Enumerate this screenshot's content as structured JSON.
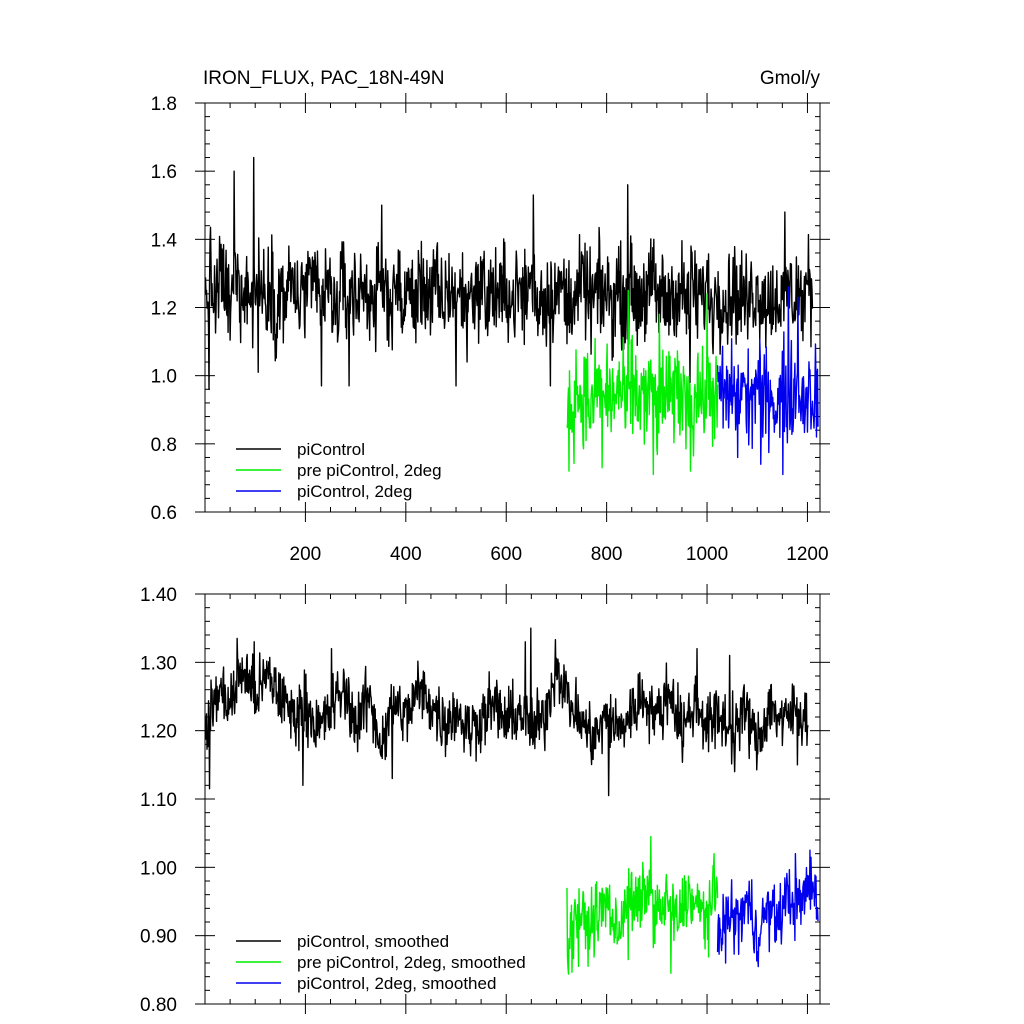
{
  "chart_data": [
    {
      "type": "line",
      "title": "IRON_FLUX, PAC_18N-49N",
      "units": "Gmol/y",
      "xlim": [
        0,
        1225
      ],
      "ylim": [
        0.6,
        1.8
      ],
      "x_ticks": [
        200,
        400,
        600,
        800,
        1000,
        1200
      ],
      "y_ticks": [
        0.6,
        0.8,
        1.0,
        1.2,
        1.4,
        1.6,
        1.8
      ],
      "x_tick_labels": [
        "200",
        "400",
        "600",
        "800",
        "1000",
        "1200"
      ],
      "y_tick_labels": [
        "0.6",
        "0.8",
        "1.0",
        "1.2",
        "1.4",
        "1.6",
        "1.8"
      ],
      "legend_position": "bottom-left",
      "series": [
        {
          "name": "piControl",
          "color": "#000000",
          "x_start": 1,
          "x_end": 1210,
          "x_step": 10,
          "values": [
            1.22,
            1.28,
            1.2,
            1.3,
            1.25,
            1.18,
            1.32,
            1.24,
            1.29,
            1.21,
            1.27,
            1.26,
            1.23,
            1.3,
            1.19,
            1.25,
            1.22,
            1.28,
            1.24,
            1.21,
            1.26,
            1.23,
            1.29,
            1.2,
            1.25,
            1.24,
            1.18,
            1.27,
            1.22,
            1.26,
            1.21,
            1.28,
            1.23,
            1.25,
            1.2,
            1.27,
            1.24,
            1.22,
            1.29,
            1.18,
            1.26,
            1.23,
            1.21,
            1.28,
            1.25,
            1.22,
            1.27,
            1.2,
            1.24,
            1.26,
            1.22,
            1.25,
            1.19,
            1.27,
            1.23,
            1.28,
            1.21,
            1.25,
            1.24,
            1.22,
            1.27,
            1.2,
            1.26,
            1.23,
            1.25,
            1.29,
            1.21,
            1.24,
            1.22,
            1.26,
            1.23,
            1.27,
            1.2,
            1.25,
            1.22,
            1.28,
            1.24,
            1.21,
            1.26,
            1.23,
            1.25,
            1.2,
            1.27,
            1.22,
            1.24,
            1.26,
            1.21,
            1.25,
            1.23,
            1.28,
            1.22,
            1.24,
            1.2,
            1.26,
            1.23,
            1.25,
            1.21,
            1.27,
            1.22,
            1.24,
            1.26,
            1.2,
            1.25,
            1.23,
            1.21,
            1.27,
            1.22,
            1.24,
            1.2,
            1.26,
            1.23,
            1.25,
            1.21,
            1.22,
            1.24,
            1.2,
            1.26,
            1.23,
            1.25,
            1.21,
            1.27,
            1.22
          ],
          "peaks": [
            [
              58,
              1.6
            ],
            [
              97,
              1.64
            ],
            [
              352,
              1.5
            ],
            [
              654,
              1.53
            ],
            [
              842,
              1.56
            ],
            [
              1155,
              1.48
            ]
          ],
          "troughs": [
            [
              8,
              0.96
            ],
            [
              106,
              1.01
            ],
            [
              232,
              0.97
            ],
            [
              287,
              0.97
            ],
            [
              500,
              0.97
            ],
            [
              688,
              0.97
            ],
            [
              966,
              0.98
            ]
          ]
        },
        {
          "name": "pre piControl, 2deg",
          "color": "#00ee00",
          "x_start": 721,
          "x_end": 1021,
          "x_step": 10,
          "values": [
            0.94,
            0.9,
            0.97,
            0.92,
            0.95,
            0.88,
            0.99,
            0.93,
            0.96,
            0.91,
            0.97,
            0.94,
            0.9,
            0.98,
            0.93,
            0.95,
            0.92,
            0.97,
            0.89,
            0.94,
            0.96,
            0.91,
            0.98,
            0.93,
            0.95,
            0.9,
            0.97,
            0.92,
            0.94,
            0.96,
            0.93
          ],
          "peaks": [
            [
              843,
              1.25
            ],
            [
              905,
              1.18
            ],
            [
              1000,
              1.24
            ]
          ],
          "troughs": [
            [
              725,
              0.72
            ],
            [
              791,
              0.73
            ],
            [
              893,
              0.71
            ],
            [
              967,
              0.72
            ]
          ]
        },
        {
          "name": "piControl, 2deg",
          "color": "#0000ee",
          "x_start": 1021,
          "x_end": 1221,
          "x_step": 10,
          "values": [
            0.94,
            0.97,
            0.92,
            0.96,
            0.93,
            0.98,
            0.91,
            0.95,
            0.97,
            0.92,
            0.96,
            0.94,
            0.9,
            0.97,
            0.93,
            0.95,
            0.98,
            0.92,
            0.96,
            0.94,
            0.95
          ],
          "peaks": [
            [
              1162,
              1.26
            ],
            [
              1181,
              1.23
            ]
          ],
          "troughs": [
            [
              1061,
              0.76
            ],
            [
              1107,
              0.74
            ],
            [
              1151,
              0.71
            ],
            [
              1218,
              0.82
            ]
          ]
        }
      ]
    },
    {
      "type": "line",
      "title": "",
      "xlim": [
        0,
        1225
      ],
      "ylim": [
        0.8,
        1.4
      ],
      "x_ticks": [
        200,
        400,
        600,
        800,
        1000,
        1200
      ],
      "y_ticks": [
        0.8,
        0.9,
        1.0,
        1.1,
        1.2,
        1.3,
        1.4
      ],
      "y_tick_labels": [
        "0.80",
        "0.90",
        "1.00",
        "1.10",
        "1.20",
        "1.30",
        "1.40"
      ],
      "legend_position": "bottom-left",
      "series": [
        {
          "name": "piControl, smoothed",
          "color": "#000000",
          "x_start": 1,
          "x_end": 1201,
          "x_step": 25,
          "values": [
            1.2,
            1.26,
            1.24,
            1.29,
            1.25,
            1.28,
            1.25,
            1.22,
            1.24,
            1.2,
            1.23,
            1.26,
            1.21,
            1.25,
            1.18,
            1.24,
            1.22,
            1.26,
            1.24,
            1.21,
            1.23,
            1.2,
            1.22,
            1.24,
            1.21,
            1.23,
            1.2,
            1.22,
            1.3,
            1.24,
            1.21,
            1.19,
            1.22,
            1.2,
            1.23,
            1.25,
            1.22,
            1.26,
            1.2,
            1.24,
            1.21,
            1.22,
            1.2,
            1.23,
            1.18,
            1.24,
            1.21,
            1.23,
            1.22
          ],
          "peaks": [
            [
              64,
              1.335
            ],
            [
              98,
              1.33
            ],
            [
              252,
              1.32
            ],
            [
              649,
              1.35
            ],
            [
              638,
              1.33
            ],
            [
              980,
              1.32
            ],
            [
              1045,
              1.31
            ]
          ],
          "troughs": [
            [
              9,
              1.115
            ],
            [
              195,
              1.12
            ],
            [
              373,
              1.13
            ],
            [
              804,
              1.105
            ],
            [
              1055,
              1.14
            ],
            [
              1180,
              1.15
            ]
          ]
        },
        {
          "name": "pre piControl, 2deg, smoothed",
          "color": "#00ee00",
          "x_start": 721,
          "x_end": 1021,
          "x_step": 20,
          "values": [
            0.87,
            0.94,
            0.91,
            0.93,
            0.95,
            0.9,
            0.96,
            0.94,
            0.97,
            0.93,
            0.95,
            0.92,
            0.96,
            0.94,
            0.93,
            0.96
          ],
          "peaks": [
            [
              721,
              0.97
            ],
            [
              888,
              1.045
            ],
            [
              1014,
              1.02
            ]
          ],
          "troughs": [
            [
              722,
              0.87
            ],
            [
              744,
              0.855
            ],
            [
              843,
              0.865
            ],
            [
              928,
              0.845
            ]
          ]
        },
        {
          "name": "piControl, 2deg, smoothed",
          "color": "#0000ee",
          "x_start": 1021,
          "x_end": 1221,
          "x_step": 20,
          "values": [
            0.91,
            0.93,
            0.92,
            0.95,
            0.9,
            0.94,
            0.92,
            0.96,
            0.94,
            0.97,
            0.96
          ],
          "peaks": [
            [
              1176,
              1.02
            ],
            [
              1205,
              1.025
            ]
          ],
          "troughs": [
            [
              1026,
              0.905
            ],
            [
              1037,
              0.86
            ],
            [
              1094,
              0.875
            ],
            [
              1219,
              0.935
            ]
          ]
        }
      ]
    }
  ]
}
